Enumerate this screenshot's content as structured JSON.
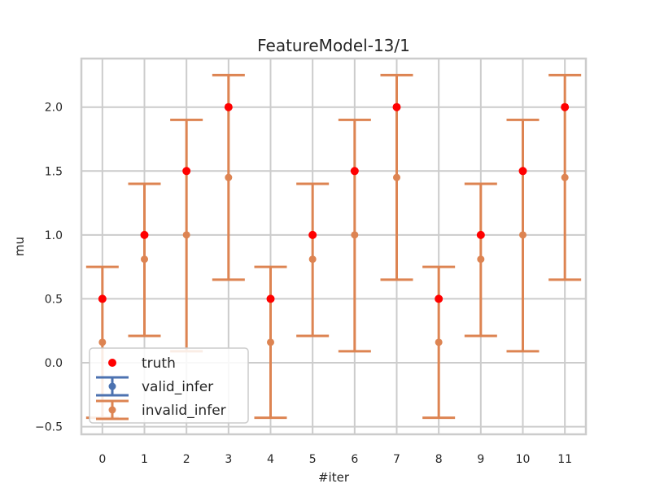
{
  "chart_data": {
    "type": "scatter",
    "title": "FeatureModel-13/1",
    "xlabel": "#iter",
    "ylabel": "mu",
    "xlim": [
      -0.5,
      11.5
    ],
    "ylim": [
      -0.56,
      2.38
    ],
    "x_ticks": [
      "0",
      "1",
      "2",
      "3",
      "4",
      "5",
      "6",
      "7",
      "8",
      "9",
      "10",
      "11"
    ],
    "y_ticks": [
      "−0.5",
      "0.0",
      "0.5",
      "1.0",
      "1.5",
      "2.0"
    ],
    "y_tick_values": [
      -0.5,
      0.0,
      0.5,
      1.0,
      1.5,
      2.0
    ],
    "grid": true,
    "legend_position": "lower-left",
    "series": [
      {
        "name": "truth",
        "kind": "scatter",
        "color": "#ff0000",
        "x": [
          0,
          1,
          2,
          3,
          4,
          5,
          6,
          7,
          8,
          9,
          10,
          11
        ],
        "y": [
          0.5,
          1.0,
          1.5,
          2.0,
          0.5,
          1.0,
          1.5,
          2.0,
          0.5,
          1.0,
          1.5,
          2.0
        ]
      },
      {
        "name": "valid_infer",
        "kind": "errorbar",
        "color": "#4c72b0",
        "x": [],
        "y": [],
        "lower": [],
        "upper": []
      },
      {
        "name": "invalid_infer",
        "kind": "errorbar",
        "color": "#dd8452",
        "x": [
          0,
          1,
          2,
          3,
          4,
          5,
          6,
          7,
          8,
          9,
          10,
          11
        ],
        "y": [
          0.16,
          0.81,
          1.0,
          1.45,
          0.16,
          0.81,
          1.0,
          1.45,
          0.16,
          0.81,
          1.0,
          1.45
        ],
        "lower": [
          -0.43,
          0.21,
          0.09,
          0.65,
          -0.43,
          0.21,
          0.09,
          0.65,
          -0.43,
          0.21,
          0.09,
          0.65
        ],
        "upper": [
          0.75,
          1.4,
          1.9,
          2.25,
          0.75,
          1.4,
          1.9,
          2.25,
          0.75,
          1.4,
          1.9,
          2.25
        ]
      }
    ]
  }
}
